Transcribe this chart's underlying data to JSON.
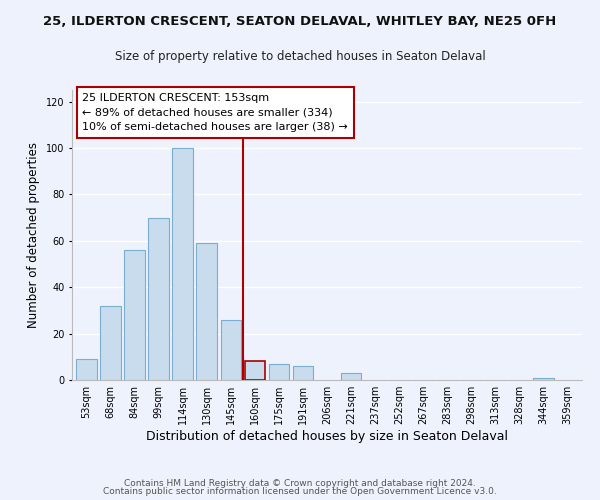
{
  "title": "25, ILDERTON CRESCENT, SEATON DELAVAL, WHITLEY BAY, NE25 0FH",
  "subtitle": "Size of property relative to detached houses in Seaton Delaval",
  "xlabel": "Distribution of detached houses by size in Seaton Delaval",
  "ylabel": "Number of detached properties",
  "bar_labels": [
    "53sqm",
    "68sqm",
    "84sqm",
    "99sqm",
    "114sqm",
    "130sqm",
    "145sqm",
    "160sqm",
    "175sqm",
    "191sqm",
    "206sqm",
    "221sqm",
    "237sqm",
    "252sqm",
    "267sqm",
    "283sqm",
    "298sqm",
    "313sqm",
    "328sqm",
    "344sqm",
    "359sqm"
  ],
  "bar_values": [
    9,
    32,
    56,
    70,
    100,
    59,
    26,
    8,
    7,
    6,
    0,
    3,
    0,
    0,
    0,
    0,
    0,
    0,
    0,
    1,
    0
  ],
  "bar_color": "#c8dcee",
  "bar_edge_color": "#7aaecf",
  "highlight_bar_index": 7,
  "highlight_bar_edge_color": "#aa0000",
  "vline_x": 6.5,
  "vline_color": "#aa0000",
  "ylim": [
    0,
    125
  ],
  "yticks": [
    0,
    20,
    40,
    60,
    80,
    100,
    120
  ],
  "annotation_title": "25 ILDERTON CRESCENT: 153sqm",
  "annotation_line1": "← 89% of detached houses are smaller (334)",
  "annotation_line2": "10% of semi-detached houses are larger (38) →",
  "annotation_box_color": "#ffffff",
  "annotation_box_edge_color": "#aa0000",
  "footer_line1": "Contains HM Land Registry data © Crown copyright and database right 2024.",
  "footer_line2": "Contains public sector information licensed under the Open Government Licence v3.0.",
  "background_color": "#eef2fc",
  "grid_color": "#ffffff",
  "title_fontsize": 9.5,
  "subtitle_fontsize": 8.5,
  "xlabel_fontsize": 9,
  "ylabel_fontsize": 8.5,
  "tick_fontsize": 7,
  "annotation_fontsize": 8,
  "footer_fontsize": 6.5
}
